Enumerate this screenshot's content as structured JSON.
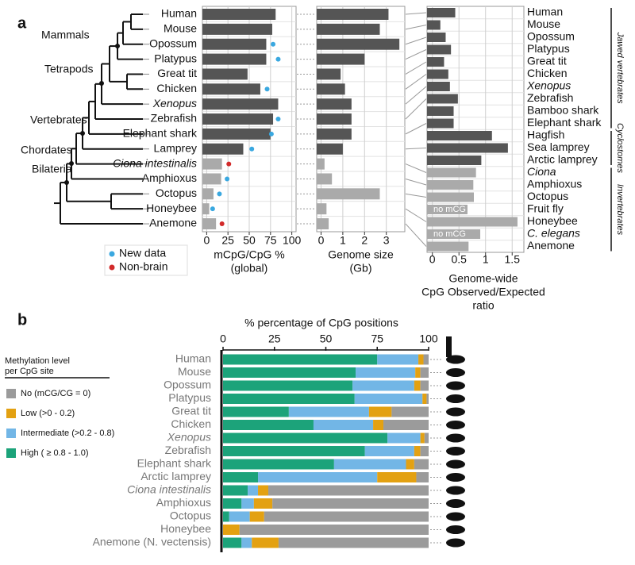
{
  "panel_labels": [
    "a",
    "b"
  ],
  "clade_labels": [
    "Mammals",
    "Tetrapods",
    "Vertebrates",
    "Chordates",
    "Bilateria"
  ],
  "chart_data": [
    {
      "type": "bar",
      "orientation": "horizontal",
      "categories": [
        "Human",
        "Mouse",
        "Opossum",
        "Platypus",
        "Great tit",
        "Chicken",
        "Xenopus",
        "Zebrafish",
        "Elephant shark",
        "Lamprey",
        "Ciona intestinalis",
        "Amphioxus",
        "Octopus",
        "Honeybee",
        "Anemone"
      ],
      "values": [
        81,
        77,
        70,
        70,
        48,
        63,
        84,
        78,
        75,
        43,
        18,
        17,
        8,
        3,
        11
      ],
      "colors": [
        "#555555",
        "#555555",
        "#555555",
        "#555555",
        "#555555",
        "#555555",
        "#555555",
        "#555555",
        "#555555",
        "#555555",
        "#aaaaaa",
        "#aaaaaa",
        "#aaaaaa",
        "#aaaaaa",
        "#aaaaaa"
      ],
      "series": [
        {
          "name": "New data",
          "color": "#3aa8e0",
          "values": [
            null,
            null,
            78,
            84,
            null,
            71,
            null,
            84,
            76,
            53,
            null,
            24,
            15,
            7,
            null
          ]
        },
        {
          "name": "Non-brain",
          "color": "#d22a2a",
          "values": [
            null,
            null,
            null,
            null,
            null,
            null,
            null,
            null,
            null,
            null,
            26,
            null,
            null,
            null,
            18
          ]
        }
      ],
      "xlabel": [
        "mCpG/CpG %",
        "(global)"
      ],
      "xlim": [
        -5,
        105
      ],
      "xticks": [
        0,
        25,
        50,
        75,
        100
      ],
      "grid": true
    },
    {
      "type": "bar",
      "orientation": "horizontal",
      "values": [
        3.1,
        2.7,
        3.6,
        2.0,
        0.9,
        1.1,
        1.4,
        1.4,
        1.4,
        1.0,
        0.16,
        0.5,
        2.7,
        0.25,
        0.35
      ],
      "colors": [
        "#555555",
        "#555555",
        "#555555",
        "#555555",
        "#555555",
        "#555555",
        "#555555",
        "#555555",
        "#555555",
        "#555555",
        "#aaaaaa",
        "#aaaaaa",
        "#aaaaaa",
        "#aaaaaa",
        "#aaaaaa"
      ],
      "xlabel": [
        "Genome size",
        "(Gb)"
      ],
      "xlim": [
        -0.2,
        3.85
      ],
      "xticks": [
        0,
        1,
        2,
        3
      ],
      "grid": true
    },
    {
      "type": "bar",
      "orientation": "horizontal",
      "categories": [
        "Human",
        "Mouse",
        "Opossum",
        "Platypus",
        "Great tit",
        "Chicken",
        "Xenopus",
        "Zebrafish",
        "Bamboo shark",
        "Elephant shark",
        "Hagfish",
        "Sea lamprey",
        "Arctic lamprey",
        "Ciona",
        "Amphioxus",
        "Octopus",
        "Fruit fly",
        "Honeybee",
        "C. elegans",
        "Anemone"
      ],
      "values": [
        0.43,
        0.15,
        0.25,
        0.35,
        0.22,
        0.3,
        0.33,
        0.48,
        0.4,
        0.4,
        1.12,
        1.42,
        0.92,
        0.82,
        0.77,
        0.78,
        0.66,
        1.6,
        0.9,
        0.68
      ],
      "colors": [
        "#555555",
        "#555555",
        "#555555",
        "#555555",
        "#555555",
        "#555555",
        "#555555",
        "#555555",
        "#555555",
        "#555555",
        "#555555",
        "#555555",
        "#555555",
        "#aaaaaa",
        "#aaaaaa",
        "#aaaaaa",
        "#aaaaaa",
        "#aaaaaa",
        "#aaaaaa",
        "#aaaaaa"
      ],
      "annotations": [
        "no mCG",
        "no mCG"
      ],
      "groups": [
        "Jawed vertebrates",
        "Cyclostomes",
        "Invertebrates"
      ],
      "xlabel": [
        "Genome-wide",
        "CpG Observed/Expected",
        "ratio"
      ],
      "xlim": [
        -0.1,
        1.72
      ],
      "xticks": [
        0,
        0.5,
        1,
        1.5
      ],
      "grid": true
    },
    {
      "type": "stacked_bar",
      "orientation": "horizontal",
      "categories": [
        "Human",
        "Mouse",
        "Opossum",
        "Platypus",
        "Great tit",
        "Chicken",
        "Xenopus",
        "Zebrafish",
        "Elephant shark",
        "Arctic lamprey",
        "Ciona intestinalis",
        "Amphioxus",
        "Octopus",
        "Honeybee",
        "Anemone (N. vectensis)"
      ],
      "series": [
        {
          "name": "High ( ≥ 0.8 - 1.0)",
          "color": "#1ca37a",
          "values": [
            75,
            64.5,
            63,
            64,
            32,
            44,
            80,
            69,
            54,
            17,
            12,
            9,
            3,
            0,
            9
          ]
        },
        {
          "name": "Intermediate (>0.2 - 0.8)",
          "color": "#72b6e6",
          "values": [
            20,
            29,
            30,
            33,
            39,
            29,
            16,
            24,
            35,
            58,
            5,
            6,
            10,
            0,
            5
          ]
        },
        {
          "name": "Low (>0 - 0.2)",
          "color": "#e3a112",
          "values": [
            2.5,
            2.5,
            3,
            2,
            11,
            5,
            2,
            3,
            4,
            19,
            5,
            9,
            7,
            8,
            13
          ]
        },
        {
          "name": "No (mCG/CG = 0)",
          "color": "#9b9b9b",
          "values": [
            2.5,
            4,
            4,
            1,
            18,
            22,
            2,
            4,
            7,
            6,
            78,
            76,
            80,
            92,
            73
          ]
        }
      ],
      "xlabel": "% percentage of CpG positions",
      "legend_title": [
        "Methylation level",
        "per CpG site"
      ],
      "legend": "left",
      "xlim": [
        0,
        100
      ],
      "xticks": [
        0,
        25,
        50,
        75,
        100
      ]
    }
  ]
}
